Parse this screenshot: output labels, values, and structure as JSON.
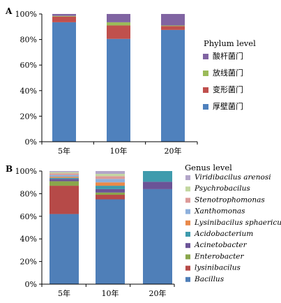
{
  "colors": {
    "bacillus": "#4f7fb8",
    "lysinibacilus": "#b64a48",
    "enterobacter": "#8aa64c",
    "acinetobacter": "#6b5497",
    "acidobacterium": "#3f9bad",
    "lysinibacilus_sphaericus": "#e9894a",
    "xanthomonas": "#8eb0dc",
    "stenotrophomonas": "#dc9a98",
    "psychrobacilus": "#c3d7a0",
    "viridibacilus_arenosi": "#b3a6c9",
    "acidobacteria_phylum": "#8064a2",
    "actinobacteria_phylum": "#9bbb59",
    "proteobacteria_phylum": "#c0504d",
    "firmicutes_phylum": "#4f81bd"
  },
  "chart_data": [
    {
      "panel_label": "A",
      "type": "bar",
      "stacked": true,
      "categories": [
        "5年",
        "10年",
        "20年"
      ],
      "yticks": [
        "0%",
        "20%",
        "40%",
        "60%",
        "80%",
        "100%"
      ],
      "ylim": [
        0,
        100
      ],
      "legend_title": "Phylum level",
      "legend_position": "right",
      "series": [
        {
          "name": "厚壁菌门",
          "color_key": "firmicutes_phylum",
          "values": [
            93.5,
            80.5,
            87.5
          ]
        },
        {
          "name": "变形菌门",
          "color_key": "proteobacteria_phylum",
          "values": [
            4.5,
            10.5,
            3.0
          ]
        },
        {
          "name": "放线菌门",
          "color_key": "actinobacteria_phylum",
          "values": [
            0.5,
            2.5,
            0.5
          ]
        },
        {
          "name": "酸杆菌门",
          "color_key": "acidobacteria_phylum",
          "values": [
            1.5,
            6.5,
            9.0
          ]
        }
      ]
    },
    {
      "panel_label": "B",
      "type": "bar",
      "stacked": true,
      "categories": [
        "5年",
        "10年",
        "20年"
      ],
      "yticks": [
        "0%",
        "20%",
        "40%",
        "60%",
        "80%",
        "100%"
      ],
      "ylim": [
        0,
        100
      ],
      "legend_title": "Genus level",
      "legend_position": "right",
      "series": [
        {
          "name": "Bacillus",
          "color_key": "bacillus",
          "values": [
            62,
            75,
            84
          ]
        },
        {
          "name": "lysinibacilus",
          "color_key": "lysinibacilus",
          "values": [
            25,
            4,
            0
          ]
        },
        {
          "name": "Enterobacter",
          "color_key": "enterobacter",
          "values": [
            4,
            2,
            0
          ]
        },
        {
          "name": "Acinetobacter",
          "color_key": "acinetobacter",
          "values": [
            2,
            3,
            6.5
          ]
        },
        {
          "name": "Acidobacterium",
          "color_key": "acidobacterium",
          "values": [
            1,
            3,
            9.5
          ]
        },
        {
          "name": "Lysinibacilus sphaericus",
          "color_key": "lysinibacilus_sphaericus",
          "values": [
            1,
            3,
            0
          ]
        },
        {
          "name": "Xanthomonas",
          "color_key": "xanthomonas",
          "values": [
            1.5,
            3,
            0
          ]
        },
        {
          "name": "Stenotrophomonas",
          "color_key": "stenotrophomonas",
          "values": [
            1.5,
            2.5,
            0
          ]
        },
        {
          "name": "Psychrobacilus",
          "color_key": "psychrobacilus",
          "values": [
            1,
            2,
            0
          ]
        },
        {
          "name": "Viridibacilus arenosi",
          "color_key": "viridibacilus_arenosi",
          "values": [
            1,
            2.5,
            0
          ]
        }
      ]
    }
  ]
}
